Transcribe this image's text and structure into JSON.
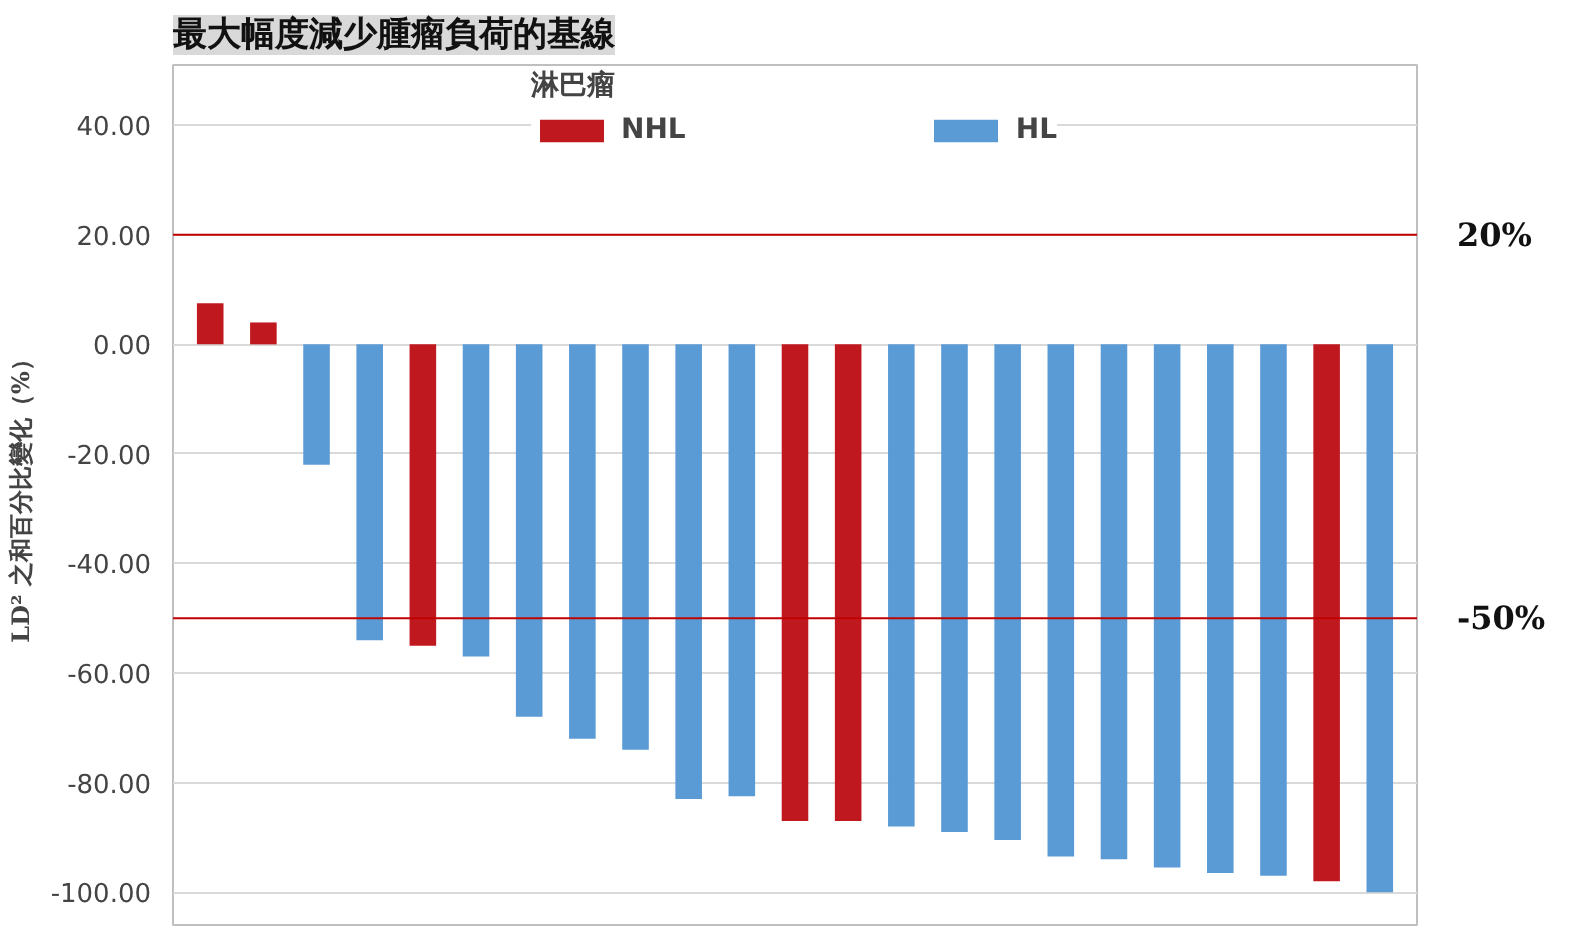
{
  "chart_data": {
    "type": "bar",
    "title": "最大幅度減少腫瘤負荷的基線",
    "ylabel": "LD² 之和百分比變化（%）",
    "legend_title": "淋巴瘤",
    "categories": [
      null,
      null,
      null,
      null,
      null,
      null,
      null,
      null,
      null,
      null,
      null,
      null,
      null,
      null,
      null,
      null,
      null,
      null,
      null,
      null,
      null,
      null,
      null
    ],
    "series": [
      {
        "name": "NHL",
        "color": "#c0181f",
        "values": [
          7.5,
          4,
          null,
          null,
          -55,
          null,
          null,
          null,
          null,
          null,
          null,
          -87,
          -87,
          null,
          null,
          null,
          null,
          null,
          null,
          null,
          null,
          -98,
          null
        ]
      },
      {
        "name": "HL",
        "color": "#5b9bd5",
        "values": [
          null,
          null,
          -22,
          -54,
          null,
          -57,
          -68,
          -72,
          -74,
          -83,
          -82.5,
          null,
          null,
          -88,
          -89,
          -90.5,
          -93.5,
          -94,
          -95.5,
          -96.5,
          -97,
          null,
          -100
        ]
      }
    ],
    "ylim": [
      -106,
      51
    ],
    "yticks": [
      {
        "value": 40,
        "label": "40.00"
      },
      {
        "value": 20,
        "label": "20.00"
      },
      {
        "value": 0,
        "label": "0.00"
      },
      {
        "value": -20,
        "label": "-20.00"
      },
      {
        "value": -40,
        "label": "-40.00"
      },
      {
        "value": -60,
        "label": "-60.00"
      },
      {
        "value": -80,
        "label": "-80.00"
      },
      {
        "value": -100,
        "label": "-100.00"
      }
    ],
    "ref_lines": [
      {
        "axis": "y",
        "value": 20,
        "label": "20%",
        "color": "#c00000"
      },
      {
        "axis": "y",
        "value": -50,
        "label": "-50%",
        "color": "#c00000"
      }
    ],
    "grid": "y",
    "legend": "top",
    "tick_labels": "y"
  }
}
